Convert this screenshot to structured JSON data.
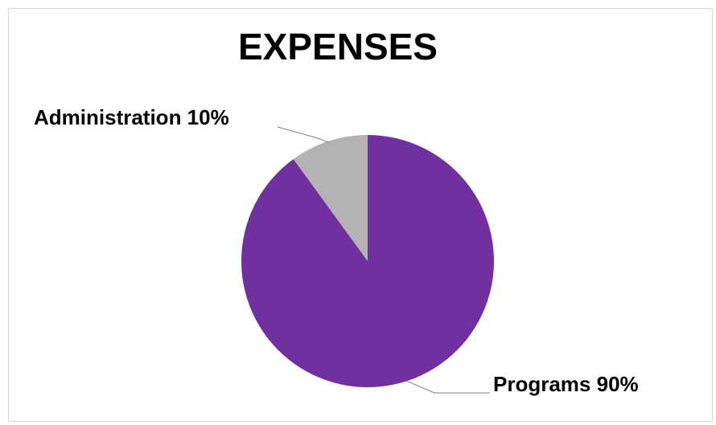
{
  "chart_data": {
    "type": "pie",
    "title": "EXPENSES",
    "slices": [
      {
        "name": "Programs",
        "value": 90,
        "label": "Programs 90%",
        "color": "#7030a0"
      },
      {
        "name": "Administration",
        "value": 10,
        "label": "Administration 10%",
        "color": "#b3b3b3"
      }
    ],
    "start_angle_deg": 0,
    "direction": "clockwise",
    "legend": "none",
    "data_labels": "outside with leader lines"
  }
}
